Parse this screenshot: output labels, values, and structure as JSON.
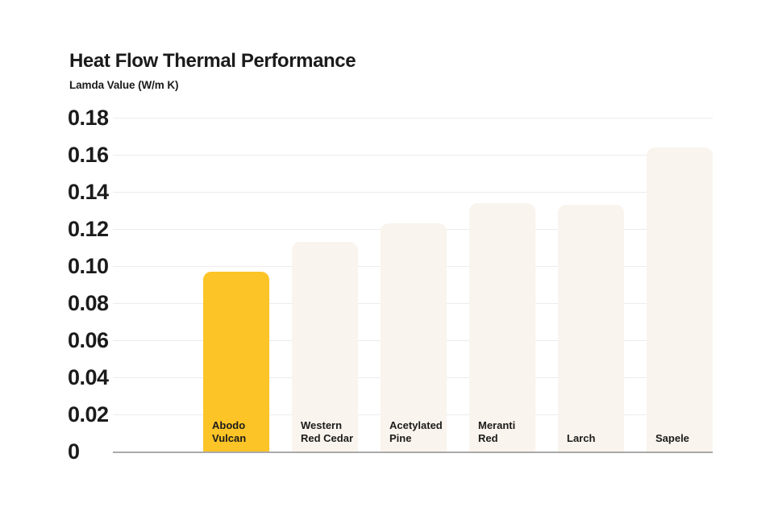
{
  "page": {
    "background_color": "#ffffff",
    "text_color": "#1b1b1b"
  },
  "header": {
    "title": "Heat Flow Thermal Performance",
    "subtitle": "Lamda Value (W/m K)"
  },
  "chart_data": {
    "type": "bar",
    "title": "Heat Flow Thermal Performance",
    "ylabel": "Lamda Value (W/m K)",
    "xlabel": "",
    "categories": [
      "Abodo Vulcan",
      "Western Red Cedar",
      "Acetylated Pine",
      "Meranti Red",
      "Larch",
      "Sapele"
    ],
    "category_lines": [
      [
        "Abodo",
        "Vulcan"
      ],
      [
        "Western",
        "Red Cedar"
      ],
      [
        "Acetylated",
        "Pine"
      ],
      [
        "Meranti",
        "Red"
      ],
      [
        "Larch"
      ],
      [
        "Sapele"
      ]
    ],
    "values": [
      0.097,
      0.113,
      0.123,
      0.134,
      0.133,
      0.164
    ],
    "ylim": [
      0,
      0.18
    ],
    "yticks": [
      0,
      0.02,
      0.04,
      0.06,
      0.08,
      0.1,
      0.12,
      0.14,
      0.16,
      0.18
    ],
    "ytick_labels": [
      "0",
      "0.02",
      "0.04",
      "0.06",
      "0.08",
      "0.10",
      "0.12",
      "0.14",
      "0.16",
      "0.18"
    ],
    "grid": true,
    "legend": false,
    "highlight_index": 0,
    "colors": {
      "highlight_bar": "#FDC427",
      "default_bar": "#F9F4ED",
      "gridline": "#ececec",
      "axis_line": "#a9a9a9",
      "label_text": "#1b1b1b"
    }
  }
}
